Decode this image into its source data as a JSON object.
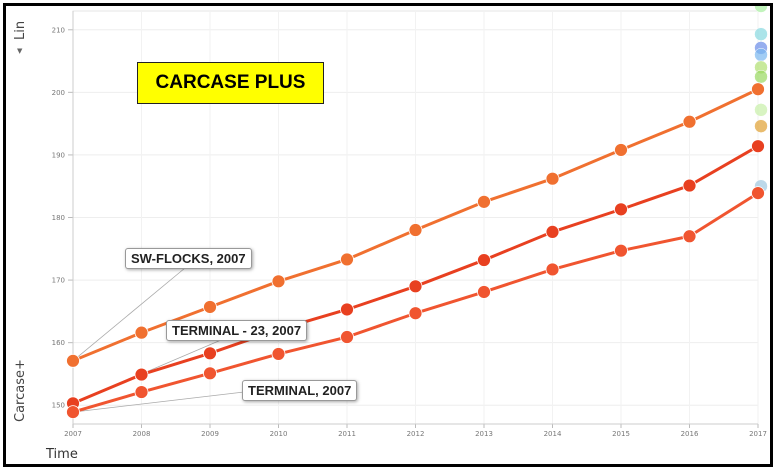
{
  "chart_data": {
    "type": "line",
    "title": "CARCASE PLUS",
    "xlabel": "Time",
    "ylabel": "Carcase+",
    "x": [
      "2007",
      "2008",
      "2009",
      "2010",
      "2011",
      "2012",
      "2013",
      "2014",
      "2015",
      "2016",
      "2017"
    ],
    "ylim": [
      147,
      213
    ],
    "yticks": [
      150,
      160,
      170,
      180,
      190,
      200,
      210
    ],
    "grid": true,
    "series": [
      {
        "name": "SW-FLOCKS, 2007",
        "color": "#f07030",
        "values": [
          157.1,
          161.6,
          165.7,
          169.8,
          173.3,
          178.0,
          182.5,
          186.2,
          190.8,
          195.3,
          200.5
        ]
      },
      {
        "name": "TERMINAL - 23, 2007",
        "color": "#e84020",
        "values": [
          150.3,
          154.9,
          158.3,
          162.1,
          165.3,
          169.0,
          173.2,
          177.7,
          181.3,
          185.1,
          191.4
        ]
      },
      {
        "name": "TERMINAL, 2007",
        "color": "#f05530",
        "values": [
          148.9,
          152.1,
          155.1,
          158.2,
          160.9,
          164.7,
          168.1,
          171.7,
          174.7,
          177.0,
          183.9
        ]
      }
    ],
    "side_markers": [
      {
        "y": 213.8,
        "color": "#a8f0a0"
      },
      {
        "y": 209.3,
        "color": "#88d8e0"
      },
      {
        "y": 207.1,
        "color": "#6a8ce8"
      },
      {
        "y": 206.0,
        "color": "#7ab8f0"
      },
      {
        "y": 204.0,
        "color": "#b0e070"
      },
      {
        "y": 202.5,
        "color": "#98d860"
      },
      {
        "y": 197.2,
        "color": "#c8f0a8"
      },
      {
        "y": 194.6,
        "color": "#e0a030"
      },
      {
        "y": 185.0,
        "color": "#a0c8e0"
      }
    ],
    "annotations": [
      {
        "text": "SW-FLOCKS, 2007",
        "x": "2007",
        "y": 157.1
      },
      {
        "text": "TERMINAL - 23, 2007",
        "x": "2007",
        "y": 150.3
      },
      {
        "text": "TERMINAL, 2007",
        "x": "2007",
        "y": 148.9
      }
    ]
  },
  "axis_controls": {
    "y_axis_selector": "Lin",
    "y_axis_arrow": "▼",
    "x_axis_selector": "Time"
  }
}
